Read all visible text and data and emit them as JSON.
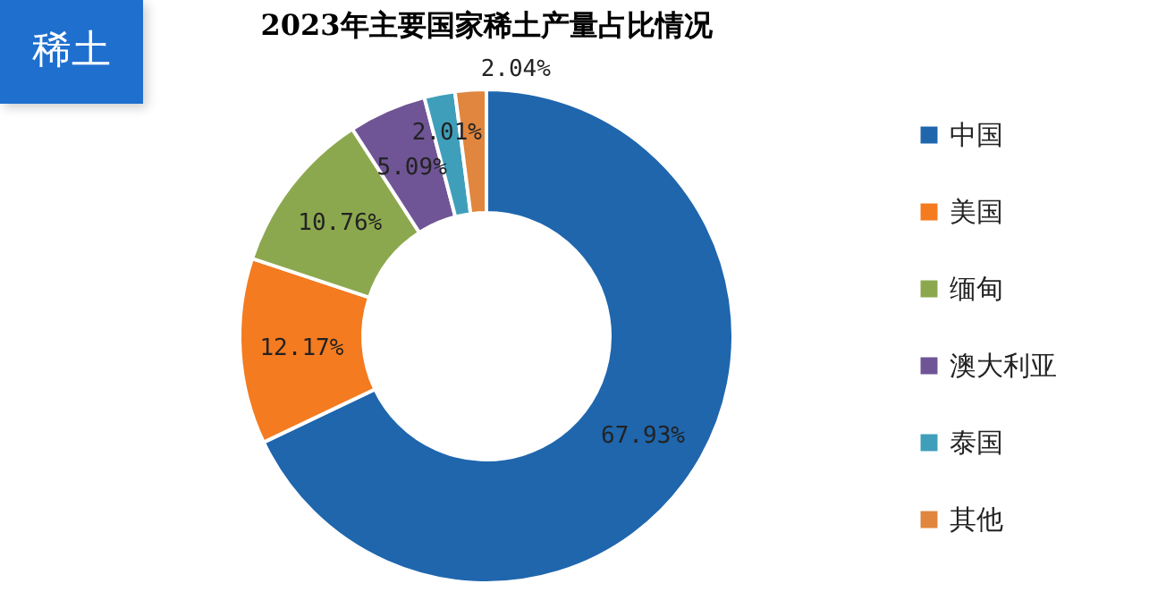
{
  "chart_data": {
    "type": "donut",
    "title": "2023年主要国家稀土产量占比情况",
    "annotations": [
      "稀土"
    ],
    "categories": [
      "中国",
      "美国",
      "缅甸",
      "澳大利亚",
      "泰国",
      "其他"
    ],
    "values": [
      67.93,
      12.17,
      10.76,
      5.09,
      2.01,
      2.04
    ],
    "value_labels": [
      "67.93%",
      "12.17%",
      "10.76%",
      "5.09%",
      "2.01%",
      "2.04%"
    ],
    "colors": [
      "#1f66ad",
      "#f47b20",
      "#8ca84e",
      "#6f5596",
      "#3f9fbb",
      "#e0863e"
    ],
    "legend": "right"
  }
}
